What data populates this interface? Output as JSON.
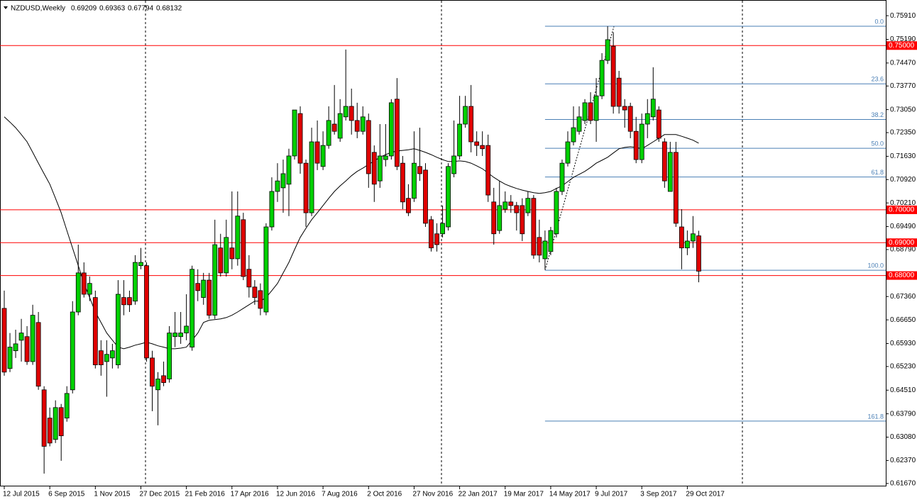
{
  "chart_data": {
    "type": "candlestick",
    "title": "NZDUSD,Weekly",
    "up_color": "#00d000",
    "down_color": "#e00000",
    "categories": [
      "12 Jul 2015",
      null,
      null,
      null,
      null,
      null,
      null,
      null,
      "6 Sep 2015",
      null,
      null,
      null,
      null,
      null,
      null,
      null,
      "1 Nov 2015",
      null,
      null,
      null,
      null,
      null,
      null,
      null,
      "27 Dec 2015",
      null,
      null,
      null,
      null,
      null,
      null,
      null,
      "21 Feb 2016",
      null,
      null,
      null,
      null,
      null,
      null,
      null,
      "17 Apr 2016",
      null,
      null,
      null,
      null,
      null,
      null,
      null,
      "12 Jun 2016",
      null,
      null,
      null,
      null,
      null,
      null,
      null,
      "7 Aug 2016",
      null,
      null,
      null,
      null,
      null,
      null,
      null,
      "2 Oct 2016",
      null,
      null,
      null,
      null,
      null,
      null,
      null,
      "27 Nov 2016",
      null,
      null,
      null,
      null,
      null,
      null,
      null,
      "22 Jan 2017",
      null,
      null,
      null,
      null,
      null,
      null,
      null,
      "19 Mar 2017",
      null,
      null,
      null,
      null,
      null,
      null,
      null,
      "14 May 2017",
      null,
      null,
      null,
      null,
      null,
      null,
      null,
      "9 Jul 2017",
      null,
      null,
      null,
      null,
      null,
      null,
      null,
      "3 Sep 2017",
      null,
      null,
      null,
      null,
      null,
      null,
      null,
      "29 Oct 2017",
      null,
      null
    ],
    "ohlc": [
      [
        0.67,
        0.6754,
        0.6495,
        0.6506
      ],
      [
        0.6517,
        0.6625,
        0.6506,
        0.6582
      ],
      [
        0.6571,
        0.6635,
        0.6549,
        0.6592
      ],
      [
        0.6603,
        0.6668,
        0.6538,
        0.6625
      ],
      [
        0.6614,
        0.6646,
        0.6528,
        0.6538
      ],
      [
        0.6538,
        0.6711,
        0.6528,
        0.6679
      ],
      [
        0.6657,
        0.6689,
        0.6452,
        0.6463
      ],
      [
        0.6452,
        0.6463,
        0.6197,
        0.628
      ],
      [
        0.6366,
        0.6398,
        0.628,
        0.629
      ],
      [
        0.6301,
        0.642,
        0.629,
        0.6398
      ],
      [
        0.6398,
        0.6409,
        0.6236,
        0.6312
      ],
      [
        0.6366,
        0.6463,
        0.6355,
        0.6441
      ],
      [
        0.6452,
        0.6722,
        0.6441,
        0.6689
      ],
      [
        0.6689,
        0.6894,
        0.6679,
        0.6808
      ],
      [
        0.6808,
        0.684,
        0.6733,
        0.6743
      ],
      [
        0.6743,
        0.6797,
        0.6722,
        0.6776
      ],
      [
        0.6733,
        0.6754,
        0.6517,
        0.6528
      ],
      [
        0.6571,
        0.6603,
        0.6495,
        0.6528
      ],
      [
        0.6538,
        0.6603,
        0.6431,
        0.656
      ],
      [
        0.6549,
        0.6592,
        0.6517,
        0.6571
      ],
      [
        0.6528,
        0.6786,
        0.6517,
        0.6743
      ],
      [
        0.6733,
        0.6786,
        0.6679,
        0.6711
      ],
      [
        0.6733,
        0.6754,
        0.6689,
        0.6711
      ],
      [
        0.6722,
        0.6862,
        0.6711,
        0.684
      ],
      [
        0.683,
        0.6884,
        0.6819,
        0.684
      ],
      [
        0.683,
        0.684,
        0.6538,
        0.6549
      ],
      [
        0.6549,
        0.6571,
        0.6387,
        0.6463
      ],
      [
        0.6452,
        0.6506,
        0.6344,
        0.6485
      ],
      [
        0.6495,
        0.6538,
        0.6463,
        0.6474
      ],
      [
        0.6485,
        0.6646,
        0.6474,
        0.6625
      ],
      [
        0.6614,
        0.6689,
        0.6582,
        0.6625
      ],
      [
        0.6614,
        0.6689,
        0.6592,
        0.6625
      ],
      [
        0.6625,
        0.6743,
        0.6603,
        0.6646
      ],
      [
        0.6582,
        0.683,
        0.6571,
        0.6819
      ],
      [
        0.6776,
        0.6819,
        0.6722,
        0.6754
      ],
      [
        0.6733,
        0.6808,
        0.6711,
        0.6786
      ],
      [
        0.6786,
        0.6808,
        0.6668,
        0.6679
      ],
      [
        0.6679,
        0.697,
        0.6668,
        0.6894
      ],
      [
        0.6884,
        0.6927,
        0.6797,
        0.6808
      ],
      [
        0.6808,
        0.697,
        0.6797,
        0.6916
      ],
      [
        0.6884,
        0.7056,
        0.6819,
        0.6851
      ],
      [
        0.6851,
        0.7056,
        0.683,
        0.6981
      ],
      [
        0.697,
        0.6991,
        0.6786,
        0.6797
      ],
      [
        0.6819,
        0.6862,
        0.6733,
        0.6765
      ],
      [
        0.6765,
        0.6786,
        0.6711,
        0.6733
      ],
      [
        0.6754,
        0.6776,
        0.6679,
        0.67
      ],
      [
        0.6689,
        0.6959,
        0.6679,
        0.6948
      ],
      [
        0.6948,
        0.7099,
        0.6937,
        0.7056
      ],
      [
        0.7056,
        0.7142,
        0.7024,
        0.7088
      ],
      [
        0.7067,
        0.7153,
        0.6991,
        0.711
      ],
      [
        0.7078,
        0.7186,
        0.6981,
        0.7164
      ],
      [
        0.7164,
        0.7304,
        0.7153,
        0.7304
      ],
      [
        0.7293,
        0.7315,
        0.711,
        0.7142
      ],
      [
        0.7142,
        0.7153,
        0.6948,
        0.6991
      ],
      [
        0.6991,
        0.725,
        0.6981,
        0.7207
      ],
      [
        0.7207,
        0.7272,
        0.7121,
        0.7142
      ],
      [
        0.7132,
        0.7239,
        0.7121,
        0.7196
      ],
      [
        0.7196,
        0.7315,
        0.7186,
        0.7272
      ],
      [
        0.7261,
        0.738,
        0.7229,
        0.7239
      ],
      [
        0.7218,
        0.7337,
        0.7207,
        0.7293
      ],
      [
        0.7283,
        0.7488,
        0.7272,
        0.7315
      ],
      [
        0.7315,
        0.7369,
        0.7229,
        0.7272
      ],
      [
        0.7272,
        0.7326,
        0.7218,
        0.7239
      ],
      [
        0.7239,
        0.7315,
        0.7229,
        0.7283
      ],
      [
        0.7272,
        0.7293,
        0.7067,
        0.711
      ],
      [
        0.7175,
        0.7196,
        0.7024,
        0.7078
      ],
      [
        0.7088,
        0.7261,
        0.7067,
        0.7164
      ],
      [
        0.7153,
        0.7261,
        0.7132,
        0.7164
      ],
      [
        0.7164,
        0.7337,
        0.7153,
        0.7326
      ],
      [
        0.7337,
        0.7401,
        0.7121,
        0.7132
      ],
      [
        0.7142,
        0.7164,
        0.7002,
        0.7024
      ],
      [
        0.7035,
        0.7078,
        0.6981,
        0.6991
      ],
      [
        0.7035,
        0.7239,
        0.7024,
        0.7142
      ],
      [
        0.7132,
        0.725,
        0.7088,
        0.711
      ],
      [
        0.7121,
        0.7142,
        0.6948,
        0.6959
      ],
      [
        0.697,
        0.6981,
        0.6873,
        0.6884
      ],
      [
        0.6927,
        0.6959,
        0.6873,
        0.6894
      ],
      [
        0.6927,
        0.7013,
        0.6916,
        0.6959
      ],
      [
        0.6948,
        0.7142,
        0.6937,
        0.7132
      ],
      [
        0.711,
        0.7272,
        0.7099,
        0.7164
      ],
      [
        0.7164,
        0.7347,
        0.7153,
        0.7261
      ],
      [
        0.7261,
        0.7347,
        0.725,
        0.7315
      ],
      [
        0.7315,
        0.738,
        0.7175,
        0.7207
      ],
      [
        0.7207,
        0.7239,
        0.7164,
        0.7196
      ],
      [
        0.7196,
        0.7239,
        0.7164,
        0.7186
      ],
      [
        0.7196,
        0.7229,
        0.7024,
        0.7045
      ],
      [
        0.7024,
        0.7067,
        0.6894,
        0.6927
      ],
      [
        0.6937,
        0.7088,
        0.6927,
        0.7013
      ],
      [
        0.7002,
        0.7056,
        0.6991,
        0.7024
      ],
      [
        0.7024,
        0.7045,
        0.6991,
        0.7013
      ],
      [
        0.7013,
        0.7024,
        0.6937,
        0.6991
      ],
      [
        0.7013,
        0.7035,
        0.6905,
        0.6927
      ],
      [
        0.6991,
        0.7056,
        0.6981,
        0.7035
      ],
      [
        0.7035,
        0.7045,
        0.6851,
        0.6862
      ],
      [
        0.6916,
        0.697,
        0.684,
        0.6862
      ],
      [
        0.6851,
        0.6937,
        0.6819,
        0.6905
      ],
      [
        0.6873,
        0.6948,
        0.6862,
        0.6937
      ],
      [
        0.6927,
        0.7067,
        0.6916,
        0.7056
      ],
      [
        0.7056,
        0.7153,
        0.7045,
        0.7142
      ],
      [
        0.7142,
        0.7239,
        0.7132,
        0.7207
      ],
      [
        0.7207,
        0.7315,
        0.7196,
        0.725
      ],
      [
        0.7239,
        0.7315,
        0.7229,
        0.7283
      ],
      [
        0.7272,
        0.7337,
        0.7261,
        0.7326
      ],
      [
        0.7326,
        0.7358,
        0.7261,
        0.7272
      ],
      [
        0.7272,
        0.7401,
        0.7207,
        0.7347
      ],
      [
        0.7347,
        0.7477,
        0.7337,
        0.7455
      ],
      [
        0.7455,
        0.7559,
        0.7444,
        0.7518
      ],
      [
        0.7498,
        0.7541,
        0.7293,
        0.7315
      ],
      [
        0.7401,
        0.7423,
        0.7293,
        0.7315
      ],
      [
        0.7315,
        0.7337,
        0.725,
        0.7304
      ],
      [
        0.7315,
        0.7326,
        0.7218,
        0.7239
      ],
      [
        0.7239,
        0.7283,
        0.7142,
        0.7153
      ],
      [
        0.7153,
        0.7293,
        0.7142,
        0.7261
      ],
      [
        0.7261,
        0.7337,
        0.7218,
        0.7293
      ],
      [
        0.7283,
        0.7434,
        0.7272,
        0.7337
      ],
      [
        0.7304,
        0.7315,
        0.7207,
        0.7218
      ],
      [
        0.7207,
        0.7218,
        0.7067,
        0.7088
      ],
      [
        0.7056,
        0.7207,
        0.7056,
        0.7175
      ],
      [
        0.7175,
        0.7207,
        0.6948,
        0.6959
      ],
      [
        0.6948,
        0.7002,
        0.6819,
        0.6884
      ],
      [
        0.6884,
        0.6937,
        0.6862,
        0.6905
      ],
      [
        0.6905,
        0.6981,
        0.6884,
        0.6927
      ],
      [
        0.69209,
        0.69363,
        0.67794,
        0.68132
      ]
    ],
    "ma": {
      "color": "#000000",
      "values": [
        0.7283,
        0.7267,
        0.725,
        0.7229,
        0.7207,
        0.7175,
        0.7142,
        0.711,
        0.7078,
        0.7035,
        0.6991,
        0.6937,
        0.6884,
        0.683,
        0.6776,
        0.6733,
        0.6689,
        0.6657,
        0.6625,
        0.6603,
        0.6582,
        0.6577,
        0.6582,
        0.6588,
        0.6592,
        0.6597,
        0.6592,
        0.6586,
        0.6582,
        0.6577,
        0.6577,
        0.6579,
        0.6582,
        0.6603,
        0.6625,
        0.6657,
        0.6664,
        0.6666,
        0.6668,
        0.6672,
        0.6679,
        0.6689,
        0.67,
        0.6711,
        0.6722,
        0.6722,
        0.6733,
        0.6754,
        0.6776,
        0.6808,
        0.684,
        0.6879,
        0.6916,
        0.6944,
        0.697,
        0.6991,
        0.7013,
        0.7035,
        0.7056,
        0.7073,
        0.7088,
        0.7104,
        0.7117,
        0.7127,
        0.7138,
        0.7149,
        0.716,
        0.7168,
        0.7175,
        0.7179,
        0.7181,
        0.7183,
        0.7186,
        0.7181,
        0.7175,
        0.7168,
        0.716,
        0.7153,
        0.7147,
        0.7147,
        0.7149,
        0.7147,
        0.7142,
        0.7134,
        0.7125,
        0.7112,
        0.7099,
        0.7088,
        0.7078,
        0.7071,
        0.7065,
        0.706,
        0.7056,
        0.7052,
        0.705,
        0.7052,
        0.7056,
        0.7065,
        0.7073,
        0.7086,
        0.7099,
        0.7108,
        0.7117,
        0.7129,
        0.7142,
        0.7151,
        0.716,
        0.7173,
        0.7186,
        0.719,
        0.7192,
        0.719,
        0.7186,
        0.7196,
        0.7207,
        0.7218,
        0.7229,
        0.7229,
        0.7229,
        0.7224,
        0.7218,
        0.7212,
        0.7203
      ]
    },
    "ylim": [
      0.6158,
      0.7628
    ],
    "yticks": [
      {
        "value": 0.7591,
        "label": "0.75910"
      },
      {
        "value": 0.7519,
        "label": "0.75190"
      },
      {
        "value": 0.7447,
        "label": "0.74470"
      },
      {
        "value": 0.7377,
        "label": "0.73770"
      },
      {
        "value": 0.7305,
        "label": "0.73050"
      },
      {
        "value": 0.7235,
        "label": "0.72350"
      },
      {
        "value": 0.7163,
        "label": "0.71630"
      },
      {
        "value": 0.7092,
        "label": "0.70920"
      },
      {
        "value": 0.7021,
        "label": "0.70210"
      },
      {
        "value": 0.6949,
        "label": "0.69490"
      },
      {
        "value": 0.6879,
        "label": "0.68790"
      },
      {
        "value": 0.6736,
        "label": "0.67360"
      },
      {
        "value": 0.6665,
        "label": "0.66650"
      },
      {
        "value": 0.6593,
        "label": "0.65930"
      },
      {
        "value": 0.6523,
        "label": "0.65230"
      },
      {
        "value": 0.6451,
        "label": "0.64510"
      },
      {
        "value": 0.6379,
        "label": "0.63790"
      },
      {
        "value": 0.6308,
        "label": "0.63080"
      },
      {
        "value": 0.6237,
        "label": "0.62370"
      },
      {
        "value": 0.6167,
        "label": "0.61670"
      }
    ],
    "hlines": {
      "color": "#ff0000",
      "levels": [
        {
          "value": 0.75,
          "label": "0.75000"
        },
        {
          "value": 0.7,
          "label": "0.70000"
        },
        {
          "value": 0.69,
          "label": "0.69000"
        },
        {
          "value": 0.68,
          "label": "0.68000"
        }
      ]
    },
    "fibo": {
      "color": "#4a7fb5",
      "high": 0.7559,
      "low": 0.6816,
      "levels": [
        {
          "value": 0,
          "label": "0.0"
        },
        23.6,
        38.2,
        {
          "value": 50,
          "label": "50.0"
        },
        61.8,
        {
          "value": 100,
          "label": "100.0"
        },
        161.8
      ]
    }
  }
}
